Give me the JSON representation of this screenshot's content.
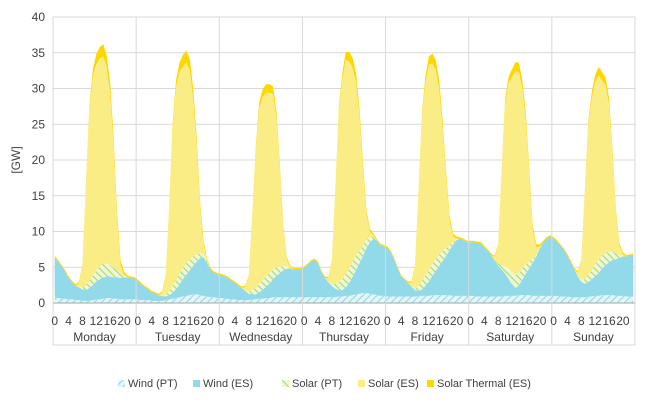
{
  "chart_data": {
    "type": "area",
    "stacked": true,
    "ylabel": "[GW]",
    "ylim": [
      0,
      40
    ],
    "yticks": [
      0,
      5,
      10,
      15,
      20,
      25,
      30,
      35,
      40
    ],
    "grid": "horizontal",
    "legend_position": "bottom",
    "days": [
      "Monday",
      "Tuesday",
      "Wednesday",
      "Thursday",
      "Friday",
      "Saturday",
      "Sunday"
    ],
    "hour_ticks": [
      "0",
      "4",
      "8",
      "12",
      "16",
      "20"
    ],
    "hours_per_day": 24,
    "colors": {
      "wind_pt": "#b8e4ec",
      "wind_es": "#92d9ea",
      "solar_pt": "#d3efa4",
      "solar_es": "#fbed86",
      "solar_thermal_es": "#ffd700",
      "gridline": "#d9d9d9",
      "axis": "#a6a6a6"
    },
    "series": [
      {
        "key": "wind_pt",
        "name": "Wind (PT)",
        "values": [
          0.8,
          0.7,
          0.6,
          0.6,
          0.5,
          0.5,
          0.4,
          0.4,
          0.3,
          0.3,
          0.3,
          0.4,
          0.5,
          0.5,
          0.6,
          0.7,
          0.7,
          0.6,
          0.6,
          0.5,
          0.5,
          0.5,
          0.5,
          0.5,
          0.5,
          0.4,
          0.4,
          0.4,
          0.3,
          0.3,
          0.3,
          0.3,
          0.4,
          0.5,
          0.6,
          0.7,
          0.8,
          0.9,
          1.0,
          1.1,
          1.2,
          1.2,
          1.1,
          1.0,
          0.9,
          0.8,
          0.8,
          0.7,
          0.7,
          0.6,
          0.6,
          0.5,
          0.5,
          0.4,
          0.4,
          0.4,
          0.4,
          0.5,
          0.5,
          0.6,
          0.6,
          0.7,
          0.7,
          0.8,
          0.8,
          0.8,
          0.8,
          0.8,
          0.8,
          0.8,
          0.8,
          0.8,
          0.8,
          0.8,
          0.8,
          0.8,
          0.8,
          0.8,
          0.8,
          0.8,
          0.8,
          0.8,
          0.9,
          0.9,
          1.0,
          1.0,
          1.1,
          1.2,
          1.3,
          1.4,
          1.4,
          1.3,
          1.2,
          1.1,
          1.0,
          1.0,
          0.9,
          0.9,
          0.9,
          0.9,
          0.9,
          0.9,
          0.9,
          0.9,
          0.9,
          1.0,
          1.0,
          1.0,
          1.0,
          1.1,
          1.1,
          1.1,
          1.1,
          1.1,
          1.1,
          1.0,
          1.0,
          1.0,
          1.0,
          1.0,
          1.0,
          1.0,
          0.9,
          0.9,
          0.9,
          0.9,
          0.9,
          0.9,
          0.9,
          0.9,
          1.0,
          1.0,
          1.0,
          1.0,
          1.1,
          1.1,
          1.1,
          1.1,
          1.0,
          1.0,
          1.0,
          1.0,
          1.0,
          1.0,
          1.0,
          1.0,
          0.9,
          0.9,
          0.9,
          0.8,
          0.8,
          0.8,
          0.8,
          0.8,
          0.9,
          0.9,
          1.0,
          1.0,
          1.1,
          1.1,
          1.1,
          1.1,
          1.0,
          1.0,
          1.0,
          0.9,
          0.9,
          0.9
        ]
      },
      {
        "key": "wind_es",
        "name": "Wind (ES)",
        "values": [
          5.6,
          5.1,
          4.5,
          3.8,
          3.0,
          2.4,
          2.0,
          1.8,
          1.6,
          1.5,
          1.8,
          2.1,
          2.5,
          2.8,
          3.0,
          3.0,
          3.0,
          3.0,
          3.0,
          3.0,
          3.1,
          3.1,
          3.0,
          2.9,
          2.6,
          2.2,
          1.8,
          1.5,
          1.2,
          1.0,
          0.8,
          0.6,
          0.5,
          0.6,
          0.8,
          1.2,
          1.8,
          2.4,
          3.0,
          3.5,
          4.0,
          4.6,
          5.2,
          5.4,
          4.6,
          3.9,
          3.4,
          3.3,
          3.2,
          3.1,
          2.9,
          2.6,
          2.3,
          2.0,
          1.7,
          1.3,
          0.9,
          0.7,
          0.7,
          0.9,
          1.2,
          1.6,
          2.0,
          2.5,
          3.0,
          3.4,
          3.8,
          4.0,
          4.0,
          3.9,
          3.9,
          3.9,
          4.1,
          4.5,
          5.0,
          5.2,
          4.8,
          3.5,
          2.7,
          2.1,
          1.6,
          1.2,
          0.9,
          0.9,
          1.2,
          1.8,
          2.6,
          3.4,
          4.3,
          5.2,
          6.3,
          7.2,
          7.8,
          7.6,
          7.1,
          6.9,
          6.8,
          6.2,
          5.2,
          3.9,
          2.8,
          2.3,
          1.9,
          1.4,
          0.9,
          0.7,
          0.9,
          1.4,
          2.0,
          2.7,
          3.4,
          4.1,
          4.8,
          5.5,
          6.3,
          7.2,
          7.8,
          8.0,
          7.8,
          7.5,
          7.5,
          7.5,
          7.5,
          7.4,
          6.9,
          6.4,
          5.8,
          5.0,
          4.3,
          3.8,
          3.1,
          2.4,
          1.6,
          1.1,
          1.4,
          2.2,
          3.0,
          3.8,
          4.6,
          5.5,
          6.6,
          7.5,
          8.0,
          8.3,
          8.0,
          7.6,
          7.1,
          6.5,
          5.7,
          4.9,
          3.9,
          2.9,
          2.2,
          1.9,
          2.0,
          2.4,
          2.8,
          3.2,
          3.7,
          4.2,
          4.6,
          4.9,
          5.1,
          5.3,
          5.5,
          5.6,
          5.7,
          5.8
        ]
      },
      {
        "key": "solar_pt",
        "name": "Solar (PT)",
        "values": [
          0,
          0,
          0,
          0,
          0,
          0,
          0,
          0.05,
          0.3,
          0.6,
          1.0,
          1.3,
          1.6,
          1.8,
          1.9,
          1.8,
          1.6,
          1.3,
          1.0,
          0.6,
          0.2,
          0.05,
          0,
          0,
          0,
          0,
          0,
          0,
          0,
          0,
          0,
          0.05,
          0.3,
          0.6,
          1.0,
          1.3,
          1.5,
          1.6,
          1.6,
          1.5,
          1.3,
          1.0,
          0.7,
          0.4,
          0.1,
          0,
          0,
          0,
          0,
          0,
          0,
          0,
          0,
          0,
          0,
          0.05,
          0.3,
          0.6,
          0.9,
          1.2,
          1.4,
          1.5,
          1.5,
          1.4,
          1.2,
          0.9,
          0.6,
          0.3,
          0.1,
          0,
          0,
          0,
          0,
          0,
          0,
          0,
          0,
          0,
          0,
          0.05,
          0.3,
          0.7,
          1.1,
          1.5,
          1.8,
          2.0,
          2.1,
          2.0,
          1.8,
          1.5,
          1.1,
          0.7,
          0.3,
          0.05,
          0,
          0,
          0,
          0,
          0,
          0,
          0,
          0,
          0,
          0.05,
          0.3,
          0.7,
          1.1,
          1.4,
          1.6,
          1.7,
          1.7,
          1.6,
          1.4,
          1.1,
          0.7,
          0.3,
          0.1,
          0,
          0,
          0,
          0,
          0,
          0,
          0,
          0,
          0,
          0,
          0.05,
          0.3,
          0.6,
          1.0,
          1.4,
          1.7,
          1.8,
          1.8,
          1.6,
          1.3,
          1.0,
          0.6,
          0.3,
          0.1,
          0,
          0,
          0,
          0,
          0,
          0,
          0,
          0,
          0,
          0,
          0.05,
          0.3,
          0.6,
          1.0,
          1.3,
          1.6,
          1.8,
          1.8,
          1.7,
          1.5,
          1.2,
          0.8,
          0.4,
          0.1,
          0,
          0,
          0
        ]
      },
      {
        "key": "solar_es",
        "name": "Solar (ES)",
        "values": [
          0,
          0,
          0,
          0,
          0,
          0,
          0,
          0.5,
          3.0,
          14,
          24,
          27.8,
          28.8,
          29.1,
          29.0,
          27.5,
          24.0,
          17.0,
          7.0,
          1.2,
          0.2,
          0,
          0,
          0,
          0,
          0,
          0,
          0,
          0,
          0,
          0,
          0.5,
          2.5,
          11,
          22,
          27.0,
          28.2,
          28.2,
          28.0,
          26.4,
          22.0,
          15.0,
          6.0,
          1.2,
          0.2,
          0,
          0,
          0,
          0,
          0,
          0,
          0,
          0,
          0,
          0,
          0.5,
          2.0,
          10,
          19,
          24.5,
          25.6,
          25.6,
          25.2,
          24.5,
          21.0,
          13.5,
          5.0,
          1.0,
          0.2,
          0,
          0,
          0,
          0,
          0,
          0,
          0,
          0,
          0,
          0,
          0.5,
          3.0,
          13,
          24,
          28.0,
          30.0,
          29.0,
          27.1,
          24.2,
          18.5,
          10.5,
          3.5,
          0.8,
          0.1,
          0,
          0,
          0,
          0,
          0,
          0,
          0,
          0,
          0,
          0,
          0.5,
          3.0,
          13,
          23,
          27.0,
          28.7,
          28.0,
          26.4,
          23.0,
          17.0,
          9.5,
          3.5,
          0.8,
          0.1,
          0,
          0,
          0,
          0,
          0,
          0,
          0,
          0,
          0,
          0,
          0.5,
          2.5,
          13,
          23,
          26.0,
          27.3,
          28.5,
          28.0,
          25.0,
          20.0,
          12.0,
          4.0,
          1.0,
          0.2,
          0,
          0,
          0,
          0,
          0,
          0,
          0,
          0,
          0,
          0,
          0.5,
          2.5,
          12,
          21,
          24.0,
          25.5,
          25.8,
          24.5,
          23.5,
          20.5,
          13.5,
          5.5,
          1.3,
          0.2,
          0,
          0,
          0
        ]
      },
      {
        "key": "solar_thermal_es",
        "name": "Solar Thermal (ES)",
        "values": [
          0.2,
          0.2,
          0.2,
          0.2,
          0.2,
          0.2,
          0.2,
          0.2,
          0.2,
          0.3,
          0.5,
          1.0,
          1.4,
          1.6,
          1.7,
          1.6,
          1.5,
          1.3,
          1.0,
          0.7,
          0.4,
          0.2,
          0.2,
          0.2,
          0.2,
          0.2,
          0.2,
          0.2,
          0.2,
          0.2,
          0.2,
          0.2,
          0.2,
          0.3,
          0.5,
          0.9,
          1.3,
          1.6,
          1.7,
          1.6,
          1.4,
          1.2,
          0.9,
          0.6,
          0.3,
          0.2,
          0.2,
          0.2,
          0.2,
          0.2,
          0.2,
          0.2,
          0.2,
          0.2,
          0.2,
          0.2,
          0.2,
          0.3,
          0.5,
          0.8,
          1.1,
          1.2,
          1.2,
          1.1,
          0.9,
          0.7,
          0.5,
          0.3,
          0.2,
          0.2,
          0.2,
          0.2,
          0.2,
          0.2,
          0.2,
          0.2,
          0.2,
          0.2,
          0.2,
          0.2,
          0.2,
          0.3,
          0.5,
          0.8,
          1.1,
          1.3,
          1.4,
          1.3,
          1.1,
          0.9,
          0.6,
          0.4,
          0.3,
          0.2,
          0.2,
          0.2,
          0.2,
          0.2,
          0.2,
          0.2,
          0.2,
          0.2,
          0.2,
          0.2,
          0.2,
          0.3,
          0.5,
          0.9,
          1.2,
          1.4,
          1.4,
          1.3,
          1.1,
          0.9,
          0.6,
          0.4,
          0.3,
          0.2,
          0.2,
          0.2,
          0.2,
          0.2,
          0.2,
          0.2,
          0.2,
          0.2,
          0.2,
          0.2,
          0.2,
          0.3,
          0.5,
          0.8,
          1.1,
          1.3,
          1.3,
          1.2,
          1.0,
          0.8,
          0.6,
          0.4,
          0.3,
          0.2,
          0.2,
          0.2,
          0.2,
          0.2,
          0.2,
          0.2,
          0.2,
          0.2,
          0.2,
          0.2,
          0.2,
          0.3,
          0.5,
          0.8,
          1.0,
          1.2,
          1.2,
          1.1,
          1.0,
          0.8,
          0.6,
          0.4,
          0.3,
          0.2,
          0.2,
          0.2
        ]
      }
    ]
  }
}
